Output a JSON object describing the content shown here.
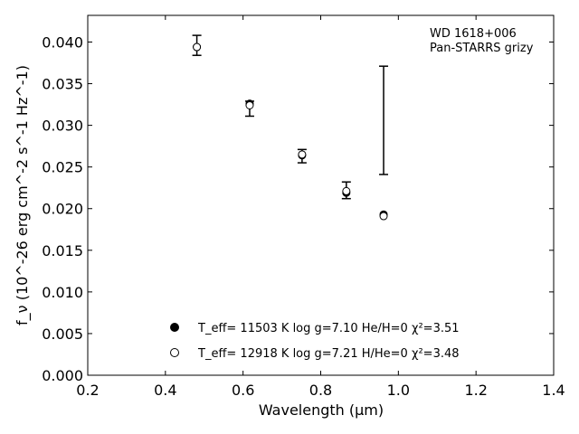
{
  "chart_data": {
    "type": "scatter",
    "xlabel": "Wavelength (μm)",
    "ylabel": "f_ν (10^-26 erg cm^-2 s^-1 Hz^-1)",
    "xlim": [
      0.2,
      1.4
    ],
    "ylim": [
      0.0,
      0.0432
    ],
    "xticks": [
      0.2,
      0.4,
      0.6,
      0.8,
      1.0,
      1.2,
      1.4
    ],
    "xtick_labels": [
      "0.2",
      "0.4",
      "0.6",
      "0.8",
      "1.0",
      "1.2",
      "1.4"
    ],
    "yticks": [
      0.0,
      0.005,
      0.01,
      0.015,
      0.02,
      0.025,
      0.03,
      0.035,
      0.04
    ],
    "ytick_labels": [
      "0.000",
      "0.005",
      "0.010",
      "0.015",
      "0.020",
      "0.025",
      "0.030",
      "0.035",
      "0.040"
    ],
    "grid": false,
    "legend_position": "bottom-center",
    "annotation": [
      "WD 1618+006",
      "Pan-STARRS grizy"
    ],
    "observed": {
      "x": [
        0.481,
        0.617,
        0.752,
        0.866,
        0.962
      ],
      "y": [
        0.0396,
        0.032,
        0.0263,
        0.0222,
        0.0306
      ],
      "yerr": [
        0.0012,
        0.0009,
        0.0008,
        0.001,
        0.0065
      ]
    },
    "series": [
      {
        "name": "T_eff= 11503 K  log g=7.10  He/H=0  χ²=3.51",
        "marker": "filled-circle",
        "x": [
          0.481,
          0.617,
          0.752,
          0.866,
          0.962
        ],
        "y": [
          0.0394,
          0.0326,
          0.0264,
          0.0219,
          0.0193
        ]
      },
      {
        "name": "T_eff= 12918 K  log g=7.21  H/He=0  χ²=3.48",
        "marker": "open-circle",
        "x": [
          0.481,
          0.617,
          0.752,
          0.866,
          0.962
        ],
        "y": [
          0.0394,
          0.0324,
          0.0265,
          0.0221,
          0.0191
        ]
      }
    ]
  }
}
